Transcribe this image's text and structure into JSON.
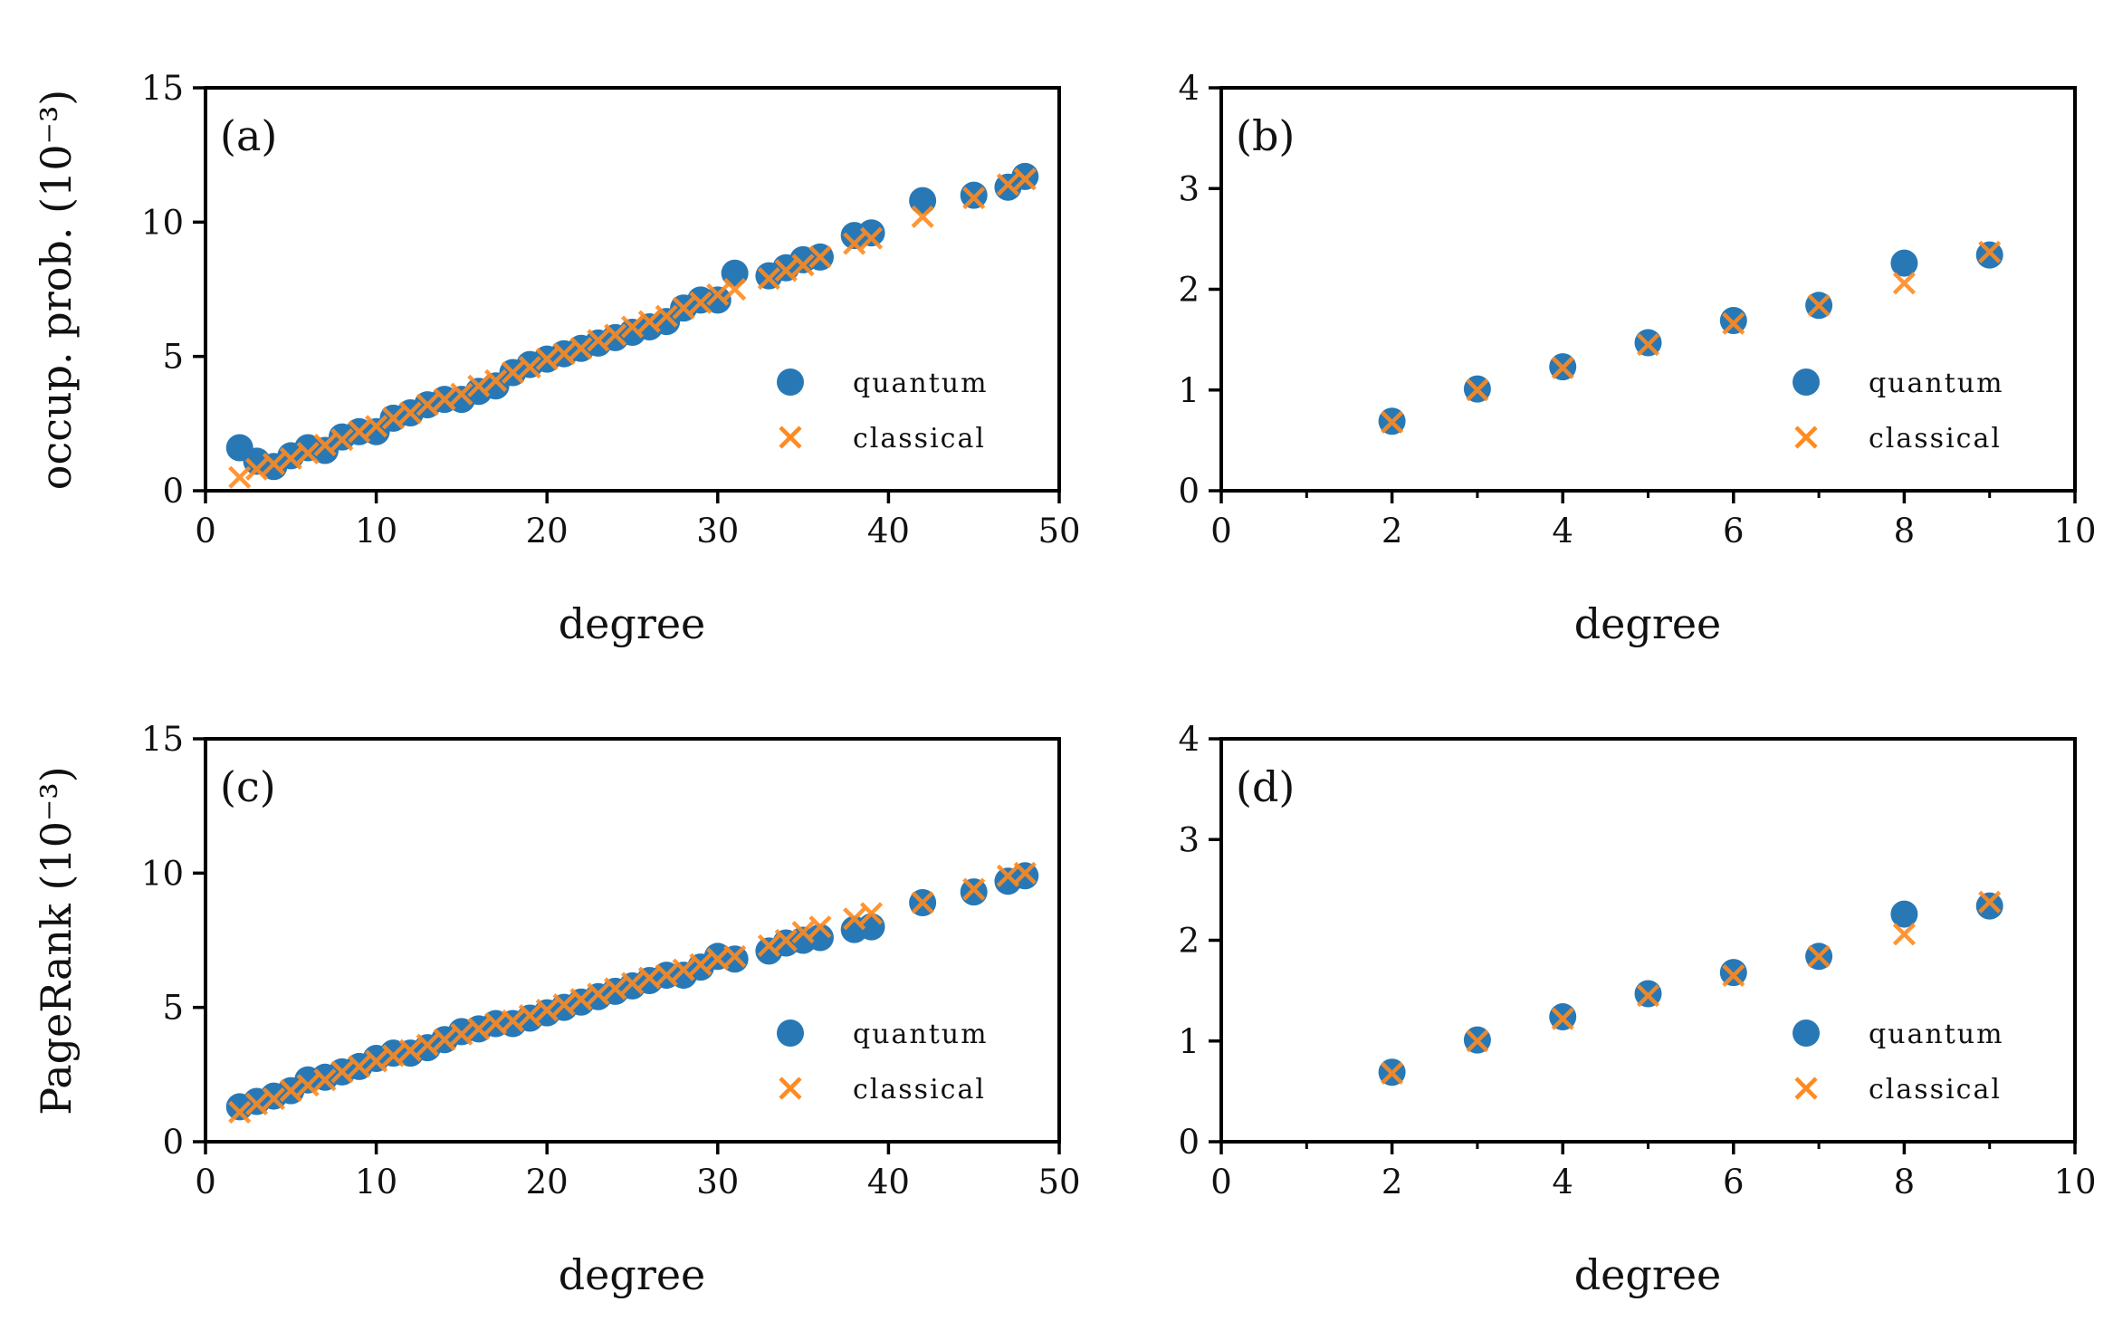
{
  "figure": {
    "colors": {
      "quantum": "#2878b5",
      "classical": "#ff8a1f"
    }
  },
  "chart_data": [
    {
      "id": "a",
      "type": "scatter",
      "panel_label": "(a)",
      "xlabel": "degree",
      "ylabel": "occup. prob. (10⁻³)",
      "xlim": [
        0,
        50
      ],
      "ylim": [
        0,
        15
      ],
      "xticks": [
        0,
        10,
        20,
        30,
        40,
        50
      ],
      "xtick_labels": [
        "0",
        "10",
        "20",
        "30",
        "40",
        "50"
      ],
      "yticks": [
        0,
        5,
        10,
        15
      ],
      "ytick_labels": [
        "0",
        "5",
        "10",
        "15"
      ],
      "legend": {
        "position": "lower-right",
        "entries": [
          "quantum",
          "classical"
        ]
      },
      "series": [
        {
          "name": "quantum",
          "marker": "circle",
          "x": [
            2,
            3,
            4,
            5,
            6,
            7,
            8,
            9,
            10,
            11,
            12,
            13,
            14,
            15,
            16,
            17,
            18,
            19,
            20,
            21,
            22,
            23,
            24,
            25,
            26,
            27,
            28,
            29,
            30,
            31,
            33,
            34,
            35,
            36,
            38,
            39,
            42,
            45,
            47,
            48
          ],
          "y": [
            1.6,
            1.1,
            0.9,
            1.3,
            1.6,
            1.5,
            2.0,
            2.2,
            2.2,
            2.7,
            2.9,
            3.2,
            3.4,
            3.4,
            3.7,
            3.9,
            4.4,
            4.7,
            4.9,
            5.1,
            5.3,
            5.5,
            5.7,
            5.9,
            6.1,
            6.3,
            6.8,
            7.1,
            7.1,
            8.1,
            8.0,
            8.3,
            8.6,
            8.7,
            9.5,
            9.6,
            10.8,
            11.0,
            11.3,
            11.7
          ]
        },
        {
          "name": "classical",
          "marker": "x",
          "x": [
            2,
            3,
            4,
            5,
            6,
            7,
            8,
            9,
            10,
            11,
            12,
            13,
            14,
            15,
            16,
            17,
            18,
            19,
            20,
            21,
            22,
            23,
            24,
            25,
            26,
            27,
            28,
            29,
            30,
            31,
            33,
            34,
            35,
            36,
            38,
            39,
            42,
            45,
            47,
            48
          ],
          "y": [
            0.5,
            0.8,
            1.0,
            1.2,
            1.4,
            1.7,
            1.9,
            2.2,
            2.4,
            2.7,
            2.9,
            3.2,
            3.4,
            3.6,
            3.9,
            4.1,
            4.4,
            4.6,
            4.9,
            5.1,
            5.3,
            5.6,
            5.8,
            6.1,
            6.3,
            6.5,
            6.8,
            7.0,
            7.3,
            7.5,
            7.9,
            8.2,
            8.4,
            8.7,
            9.2,
            9.4,
            10.2,
            10.9,
            11.4,
            11.6
          ]
        }
      ]
    },
    {
      "id": "b",
      "type": "scatter",
      "panel_label": "(b)",
      "xlabel": "degree",
      "ylabel": "",
      "xlim": [
        0,
        10
      ],
      "ylim": [
        0,
        4
      ],
      "xticks": [
        0,
        2,
        4,
        6,
        8,
        10
      ],
      "xtick_labels": [
        "0",
        "2",
        "4",
        "6",
        "8",
        "10"
      ],
      "minor_xticks": [
        1,
        3,
        5,
        7,
        9
      ],
      "yticks": [
        0,
        1,
        2,
        3,
        4
      ],
      "ytick_labels": [
        "0",
        "1",
        "2",
        "3",
        "4"
      ],
      "legend": {
        "position": "lower-right",
        "entries": [
          "quantum",
          "classical"
        ]
      },
      "series": [
        {
          "name": "quantum",
          "marker": "circle",
          "x": [
            2,
            3,
            4,
            5,
            6,
            7,
            8,
            9
          ],
          "y": [
            0.69,
            1.01,
            1.23,
            1.47,
            1.69,
            1.84,
            2.26,
            2.34
          ]
        },
        {
          "name": "classical",
          "marker": "x",
          "x": [
            2,
            3,
            4,
            5,
            6,
            7,
            8,
            9
          ],
          "y": [
            0.68,
            1.0,
            1.22,
            1.45,
            1.66,
            1.84,
            2.06,
            2.37
          ]
        }
      ]
    },
    {
      "id": "c",
      "type": "scatter",
      "panel_label": "(c)",
      "xlabel": "degree",
      "ylabel": "PageRank (10⁻³)",
      "xlim": [
        0,
        50
      ],
      "ylim": [
        0,
        15
      ],
      "xticks": [
        0,
        10,
        20,
        30,
        40,
        50
      ],
      "xtick_labels": [
        "0",
        "10",
        "20",
        "30",
        "40",
        "50"
      ],
      "yticks": [
        0,
        5,
        10,
        15
      ],
      "ytick_labels": [
        "0",
        "5",
        "10",
        "15"
      ],
      "legend": {
        "position": "lower-right",
        "entries": [
          "quantum",
          "classical"
        ]
      },
      "series": [
        {
          "name": "quantum",
          "marker": "circle",
          "x": [
            2,
            3,
            4,
            5,
            6,
            7,
            8,
            9,
            10,
            11,
            12,
            13,
            14,
            15,
            16,
            17,
            18,
            19,
            20,
            21,
            22,
            23,
            24,
            25,
            26,
            27,
            28,
            29,
            30,
            31,
            33,
            34,
            35,
            36,
            38,
            39,
            42,
            45,
            47,
            48
          ],
          "y": [
            1.3,
            1.5,
            1.7,
            1.9,
            2.3,
            2.4,
            2.6,
            2.8,
            3.1,
            3.3,
            3.3,
            3.5,
            3.8,
            4.1,
            4.2,
            4.4,
            4.4,
            4.6,
            4.8,
            5.0,
            5.2,
            5.4,
            5.6,
            5.8,
            6.0,
            6.2,
            6.2,
            6.5,
            6.9,
            6.8,
            7.1,
            7.4,
            7.5,
            7.6,
            7.9,
            8.0,
            8.9,
            9.3,
            9.7,
            9.9
          ]
        },
        {
          "name": "classical",
          "marker": "x",
          "x": [
            2,
            3,
            4,
            5,
            6,
            7,
            8,
            9,
            10,
            11,
            12,
            13,
            14,
            15,
            16,
            17,
            18,
            19,
            20,
            21,
            22,
            23,
            24,
            25,
            26,
            27,
            28,
            29,
            30,
            31,
            33,
            34,
            35,
            36,
            38,
            39,
            42,
            45,
            47,
            48
          ],
          "y": [
            1.1,
            1.4,
            1.6,
            1.9,
            2.1,
            2.3,
            2.6,
            2.8,
            3.0,
            3.2,
            3.4,
            3.6,
            3.8,
            4.0,
            4.2,
            4.4,
            4.5,
            4.7,
            4.9,
            5.1,
            5.3,
            5.5,
            5.7,
            5.9,
            6.1,
            6.2,
            6.4,
            6.6,
            6.8,
            6.9,
            7.3,
            7.5,
            7.8,
            8.0,
            8.3,
            8.5,
            8.9,
            9.4,
            9.9,
            10.0
          ]
        }
      ]
    },
    {
      "id": "d",
      "type": "scatter",
      "panel_label": "(d)",
      "xlabel": "degree",
      "ylabel": "",
      "xlim": [
        0,
        10
      ],
      "ylim": [
        0,
        4
      ],
      "xticks": [
        0,
        2,
        4,
        6,
        8,
        10
      ],
      "xtick_labels": [
        "0",
        "2",
        "4",
        "6",
        "8",
        "10"
      ],
      "minor_xticks": [
        1,
        3,
        5,
        7,
        9
      ],
      "yticks": [
        0,
        1,
        2,
        3,
        4
      ],
      "ytick_labels": [
        "0",
        "1",
        "2",
        "3",
        "4"
      ],
      "legend": {
        "position": "lower-right",
        "entries": [
          "quantum",
          "classical"
        ]
      },
      "series": [
        {
          "name": "quantum",
          "marker": "circle",
          "x": [
            2,
            3,
            4,
            5,
            6,
            7,
            8,
            9
          ],
          "y": [
            0.69,
            1.01,
            1.24,
            1.47,
            1.68,
            1.84,
            2.26,
            2.34
          ]
        },
        {
          "name": "classical",
          "marker": "x",
          "x": [
            2,
            3,
            4,
            5,
            6,
            7,
            8,
            9
          ],
          "y": [
            0.68,
            1.0,
            1.22,
            1.45,
            1.65,
            1.84,
            2.06,
            2.38
          ]
        }
      ]
    }
  ]
}
